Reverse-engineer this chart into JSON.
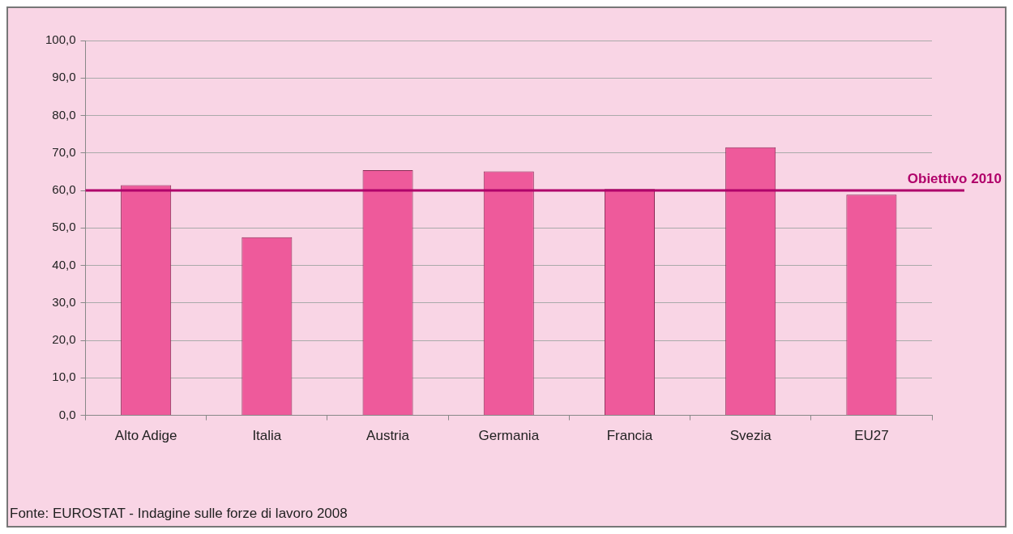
{
  "chart_data": {
    "type": "bar",
    "categories": [
      "Alto Adige",
      "Italia",
      "Austria",
      "Germania",
      "Francia",
      "Svezia",
      "EU27"
    ],
    "values": [
      61.4,
      47.5,
      65.4,
      65.1,
      60.4,
      71.5,
      58.9
    ],
    "color": "#ee5a9b",
    "ylim": [
      0,
      100
    ],
    "yticks": [
      {
        "value": 0,
        "label": "0,0"
      },
      {
        "value": 10,
        "label": "10,0"
      },
      {
        "value": 20,
        "label": "20,0"
      },
      {
        "value": 30,
        "label": "30,0"
      },
      {
        "value": 40,
        "label": "40,0"
      },
      {
        "value": 50,
        "label": "50,0"
      },
      {
        "value": 60,
        "label": "60,0"
      },
      {
        "value": 70,
        "label": "70,0"
      },
      {
        "value": 80,
        "label": "80,0"
      },
      {
        "value": 90,
        "label": "90,0"
      },
      {
        "value": 100,
        "label": "100,0"
      }
    ],
    "grid": "y",
    "legend": false,
    "ref_lines": [
      {
        "axis": "y",
        "value": 60,
        "label": "Obiettivo 2010",
        "color": "#b0006a"
      }
    ],
    "annotations": [
      "Fonte: EUROSTAT - Indagine sulle forze di lavoro 2008"
    ]
  }
}
